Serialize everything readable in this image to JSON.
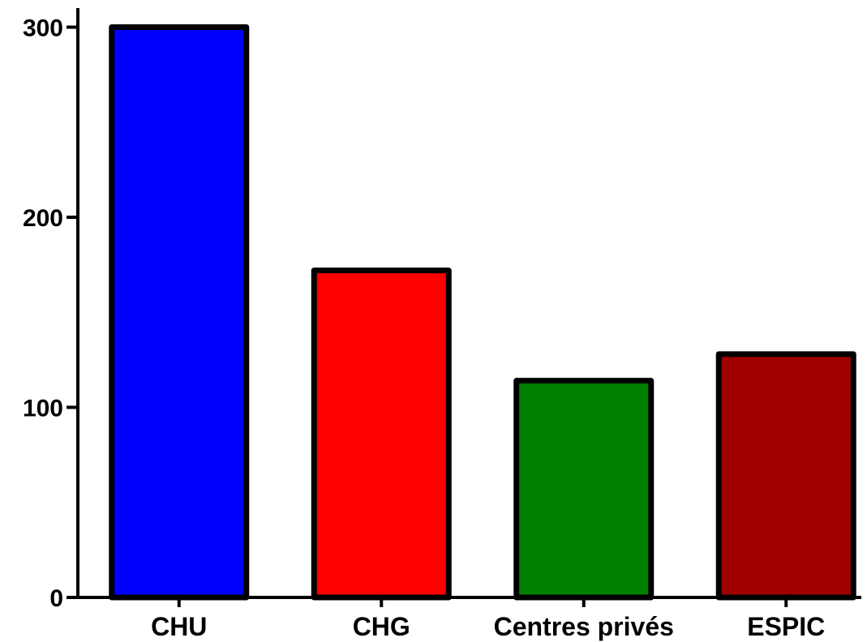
{
  "chart_data": {
    "type": "bar",
    "title": "",
    "xlabel": "",
    "ylabel": "",
    "categories": [
      "CHU",
      "CHG",
      "Centres privés",
      "ESPIC"
    ],
    "values": [
      300,
      172,
      114,
      128
    ],
    "colors": [
      "#0000ff",
      "#ff0000",
      "#008000",
      "#a00000"
    ],
    "ylim": [
      0,
      310
    ],
    "yticks": [
      0,
      100,
      200,
      300
    ],
    "ytick_labels": [
      "0",
      "100",
      "200",
      "300"
    ],
    "grid": false,
    "legend": false
  }
}
